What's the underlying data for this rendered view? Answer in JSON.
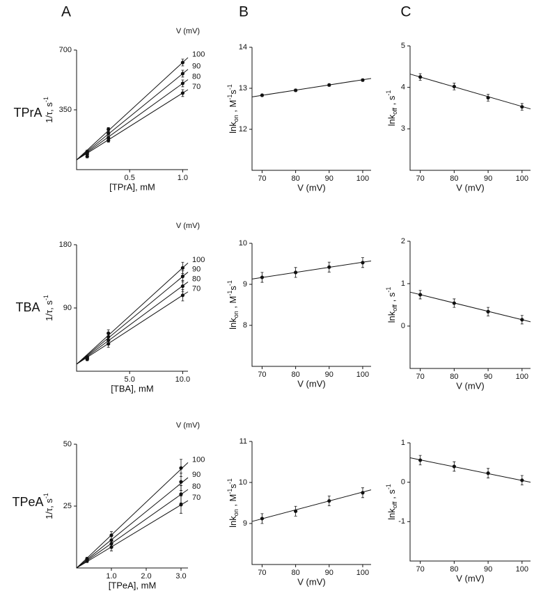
{
  "column_labels": [
    "A",
    "B",
    "C"
  ],
  "row_labels": [
    "TPrA",
    "TBA",
    "TPeA"
  ],
  "chart_data": [
    {
      "type": "scatter",
      "legend_title": "V (mV)",
      "xlabel": "[TPrA], mM",
      "ylabel": [
        {
          "text": "1/τ, s"
        },
        {
          "text": "-1",
          "script": "sup"
        }
      ],
      "xlim": [
        0,
        1.05
      ],
      "ylim": [
        0,
        700
      ],
      "xticks": [
        0.5,
        {
          "value": 1,
          "label": "1.0"
        }
      ],
      "yticks": [
        350,
        700
      ],
      "series": [
        {
          "name": "100",
          "x": [
            0.1,
            0.3,
            1.0
          ],
          "values": [
            106,
            236,
            627
          ],
          "errors": [
            8,
            10,
            20
          ],
          "fit_x": [
            0,
            1.05
          ],
          "fit_values": [
            57,
            656
          ]
        },
        {
          "name": "90",
          "x": [
            0.1,
            0.3,
            1.0
          ],
          "values": [
            98,
            212,
            562
          ],
          "errors": [
            8,
            10,
            20
          ],
          "fit_x": [
            0,
            1.05
          ],
          "fit_values": [
            57,
            587
          ]
        },
        {
          "name": "80",
          "x": [
            0.1,
            0.3,
            1.0
          ],
          "values": [
            90,
            187,
            505
          ],
          "errors": [
            8,
            10,
            20
          ],
          "fit_x": [
            0,
            1.05
          ],
          "fit_values": [
            57,
            527
          ]
        },
        {
          "name": "70",
          "x": [
            0.1,
            0.3,
            1.0
          ],
          "values": [
            77,
            171,
            448
          ],
          "errors": [
            8,
            10,
            20
          ],
          "fit_x": [
            0,
            1.05
          ],
          "fit_values": [
            57,
            468
          ]
        }
      ]
    },
    {
      "type": "scatter",
      "xlabel": "V (mV)",
      "ylabel": [
        {
          "text": "lnk"
        },
        {
          "text": "on",
          "script": "sub"
        },
        {
          "text": " , M"
        },
        {
          "text": "-1",
          "script": "sup"
        },
        {
          "text": "s"
        },
        {
          "text": "-1",
          "script": "sup"
        }
      ],
      "xlim": [
        67,
        102.5
      ],
      "ylim": [
        11,
        14
      ],
      "xticks": [
        70,
        80,
        90,
        100
      ],
      "yticks": [
        12,
        13,
        14
      ],
      "series": [
        {
          "x": [
            70,
            80,
            90,
            100
          ],
          "values": [
            12.83,
            12.95,
            13.08,
            13.2
          ],
          "errors": [
            0.03,
            0.03,
            0.03,
            0.03
          ],
          "fit_x": [
            67,
            102.5
          ],
          "fit_values": [
            12.79,
            13.24
          ]
        }
      ]
    },
    {
      "type": "scatter",
      "xlabel": "V (mV)",
      "ylabel": [
        {
          "text": "lnk"
        },
        {
          "text": "off",
          "script": "sub"
        },
        {
          "text": " , s"
        },
        {
          "text": "-1",
          "script": "sup"
        }
      ],
      "xlim": [
        67,
        102.5
      ],
      "ylim": [
        2,
        5
      ],
      "xticks": [
        70,
        80,
        90,
        100
      ],
      "yticks": [
        3,
        4,
        5
      ],
      "series": [
        {
          "x": [
            70,
            80,
            90,
            100
          ],
          "values": [
            4.25,
            4.02,
            3.75,
            3.53
          ],
          "errors": [
            0.08,
            0.08,
            0.08,
            0.08
          ],
          "fit_x": [
            67,
            102.5
          ],
          "fit_values": [
            4.32,
            3.48
          ]
        }
      ]
    },
    {
      "type": "scatter",
      "legend_title": "V (mV)",
      "xlabel": "[TBA], mM",
      "ylabel": [
        {
          "text": "1/τ, s"
        },
        {
          "text": "-1",
          "script": "sup"
        }
      ],
      "xlim": [
        0,
        10.5
      ],
      "ylim": [
        0,
        180
      ],
      "xticks": [
        {
          "value": 5,
          "label": "5.0"
        },
        {
          "value": 10,
          "label": "10.0"
        }
      ],
      "yticks": [
        90,
        180
      ],
      "series": [
        {
          "name": "100",
          "x": [
            1,
            3,
            10
          ],
          "values": [
            20,
            54,
            147
          ],
          "errors": [
            2,
            5,
            8
          ],
          "fit_x": [
            0,
            10.5
          ],
          "fit_values": [
            10,
            154
          ]
        },
        {
          "name": "90",
          "x": [
            1,
            3,
            10
          ],
          "values": [
            19,
            49,
            135
          ],
          "errors": [
            2,
            5,
            8
          ],
          "fit_x": [
            0,
            10.5
          ],
          "fit_values": [
            10,
            141
          ]
        },
        {
          "name": "80",
          "x": [
            1,
            3,
            10
          ],
          "values": [
            18,
            44,
            121
          ],
          "errors": [
            2,
            5,
            8
          ],
          "fit_x": [
            0,
            10.5
          ],
          "fit_values": [
            10,
            127
          ]
        },
        {
          "name": "70",
          "x": [
            1,
            3,
            10
          ],
          "values": [
            17,
            39,
            108
          ],
          "errors": [
            2,
            5,
            8
          ],
          "fit_x": [
            0,
            10.5
          ],
          "fit_values": [
            10,
            113
          ]
        }
      ]
    },
    {
      "type": "scatter",
      "xlabel": "V (mV)",
      "ylabel": [
        {
          "text": "lnk"
        },
        {
          "text": "on",
          "script": "sub"
        },
        {
          "text": " , M"
        },
        {
          "text": "-1",
          "script": "sup"
        },
        {
          "text": "s"
        },
        {
          "text": "-1",
          "script": "sup"
        }
      ],
      "xlim": [
        67,
        102.5
      ],
      "ylim": [
        7,
        10
      ],
      "xticks": [
        70,
        80,
        90,
        100
      ],
      "yticks": [
        8,
        9,
        10
      ],
      "series": [
        {
          "x": [
            70,
            80,
            90,
            100
          ],
          "values": [
            9.17,
            9.29,
            9.42,
            9.53
          ],
          "errors": [
            0.12,
            0.12,
            0.12,
            0.12
          ],
          "fit_x": [
            67,
            102.5
          ],
          "fit_values": [
            9.13,
            9.57
          ]
        }
      ]
    },
    {
      "type": "scatter",
      "xlabel": "V (mV)",
      "ylabel": [
        {
          "text": "lnk"
        },
        {
          "text": "off",
          "script": "sub"
        },
        {
          "text": " , s"
        },
        {
          "text": "-1",
          "script": "sup"
        }
      ],
      "xlim": [
        67,
        102.5
      ],
      "ylim": [
        -1,
        2
      ],
      "xticks": [
        70,
        80,
        90,
        100
      ],
      "yticks": [
        0,
        1,
        2
      ],
      "series": [
        {
          "x": [
            70,
            80,
            90,
            100
          ],
          "values": [
            0.74,
            0.54,
            0.34,
            0.15
          ],
          "errors": [
            0.1,
            0.1,
            0.1,
            0.1
          ],
          "fit_x": [
            67,
            102.5
          ],
          "fit_values": [
            0.8,
            0.1
          ]
        }
      ]
    },
    {
      "type": "scatter",
      "legend_title": "V (mV)",
      "xlabel": "[TPeA], mM",
      "ylabel": [
        {
          "text": "1/τ, s"
        },
        {
          "text": "-1",
          "script": "sup"
        }
      ],
      "xlim": [
        0,
        3.2
      ],
      "ylim": [
        0,
        50
      ],
      "xticks": [
        {
          "value": 1,
          "label": "1.0"
        },
        {
          "value": 2,
          "label": "2.0"
        },
        {
          "value": 3,
          "label": "3.0"
        }
      ],
      "yticks": [
        25,
        50
      ],
      "series": [
        {
          "name": "100",
          "x": [
            0.3,
            1,
            3
          ],
          "values": [
            3.7,
            13.2,
            40.4
          ],
          "errors": [
            0.6,
            1.5,
            3.5
          ],
          "fit_x": [
            0,
            3.2
          ],
          "fit_values": [
            0,
            42.6
          ]
        },
        {
          "name": "90",
          "x": [
            0.3,
            1,
            3
          ],
          "values": [
            3.4,
            11.2,
            34.8
          ],
          "errors": [
            0.6,
            1.5,
            3.5
          ],
          "fit_x": [
            0,
            3.2
          ],
          "fit_values": [
            0,
            36.5
          ]
        },
        {
          "name": "80",
          "x": [
            0.3,
            1,
            3
          ],
          "values": [
            3.1,
            9.8,
            29.8
          ],
          "errors": [
            0.6,
            1.5,
            3.5
          ],
          "fit_x": [
            0,
            3.2
          ],
          "fit_values": [
            0,
            31.7
          ]
        },
        {
          "name": "70",
          "x": [
            0.3,
            1,
            3
          ],
          "values": [
            2.8,
            8.4,
            25.6
          ],
          "errors": [
            0.6,
            1.5,
            3.5
          ],
          "fit_x": [
            0,
            3.2
          ],
          "fit_values": [
            0,
            27.2
          ]
        }
      ]
    },
    {
      "type": "scatter",
      "xlabel": "V (mV)",
      "ylabel": [
        {
          "text": "lnk"
        },
        {
          "text": "on",
          "script": "sub"
        },
        {
          "text": " , M"
        },
        {
          "text": "-1",
          "script": "sup"
        },
        {
          "text": "s"
        },
        {
          "text": "-1",
          "script": "sup"
        }
      ],
      "xlim": [
        67,
        102.5
      ],
      "ylim": [
        8,
        11
      ],
      "xticks": [
        70,
        80,
        90,
        100
      ],
      "yticks": [
        9,
        10,
        11
      ],
      "series": [
        {
          "x": [
            70,
            80,
            90,
            100
          ],
          "values": [
            9.12,
            9.3,
            9.55,
            9.75
          ],
          "errors": [
            0.12,
            0.12,
            0.12,
            0.12
          ],
          "fit_x": [
            67,
            102.5
          ],
          "fit_values": [
            9.05,
            9.82
          ]
        }
      ]
    },
    {
      "type": "scatter",
      "xlabel": "V (mV)",
      "ylabel": [
        {
          "text": "lnk"
        },
        {
          "text": "off",
          "script": "sub"
        },
        {
          "text": " , s"
        },
        {
          "text": "-1",
          "script": "sup"
        }
      ],
      "xlim": [
        67,
        102.5
      ],
      "ylim": [
        -2,
        1
      ],
      "xticks": [
        70,
        80,
        90,
        100
      ],
      "yticks": [
        -1,
        0,
        1
      ],
      "series": [
        {
          "x": [
            70,
            80,
            90,
            100
          ],
          "values": [
            0.56,
            0.4,
            0.23,
            0.05
          ],
          "errors": [
            0.12,
            0.12,
            0.12,
            0.12
          ],
          "fit_x": [
            67,
            102.5
          ],
          "fit_values": [
            0.62,
            0
          ]
        }
      ]
    }
  ]
}
